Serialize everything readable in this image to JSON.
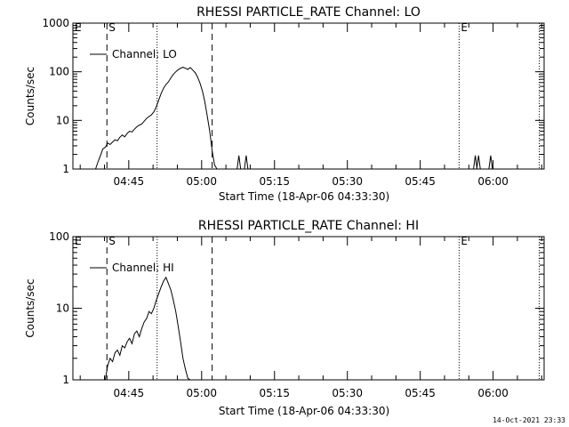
{
  "footer_date": "14-Oct-2021 23:33",
  "chart_data": [
    {
      "type": "line",
      "title": "RHESSI PARTICLE_RATE Channel: LO",
      "xlabel": "Start Time (18-Apr-06 04:33:30)",
      "ylabel": "Counts/sec",
      "y_scale": "log",
      "ylim": [
        1,
        1000
      ],
      "xlim": [
        "04:33:30",
        "06:10:30"
      ],
      "x_ticks": [
        "04:45",
        "05:00",
        "05:15",
        "05:30",
        "05:45",
        "06:00"
      ],
      "y_ticks": [
        "1",
        "10",
        "100",
        "1000"
      ],
      "legend": {
        "label": "Channel: LO",
        "position": "top-left"
      },
      "markers": [
        {
          "label": "E",
          "time": "04:33:30",
          "style": "dotted"
        },
        {
          "label": "S",
          "time": "04:40:30",
          "style": "dashed"
        },
        {
          "label": "",
          "time": "04:50:50",
          "style": "dotted"
        },
        {
          "label": "",
          "time": "05:02:10",
          "style": "dashed"
        },
        {
          "label": "E",
          "time": "05:53:00",
          "style": "dotted"
        },
        {
          "label": "",
          "time": "06:09:30",
          "style": "dotted"
        }
      ],
      "series": [
        {
          "x": [
            "04:38:10",
            "04:38:40",
            "04:39:10",
            "04:39:40",
            "04:40:10",
            "04:40:40",
            "04:41:10",
            "04:41:40",
            "04:42:10",
            "04:42:40",
            "04:43:10",
            "04:43:40",
            "04:44:10",
            "04:44:40",
            "04:45:10",
            "04:45:40",
            "04:46:10",
            "04:46:40",
            "04:47:10",
            "04:47:40",
            "04:48:10",
            "04:48:40",
            "04:49:10",
            "04:49:40",
            "04:50:10",
            "04:50:40",
            "04:51:10",
            "04:51:40",
            "04:52:10",
            "04:52:40",
            "04:53:10",
            "04:53:40",
            "04:54:10",
            "04:54:40",
            "04:55:10",
            "04:55:40",
            "04:56:10",
            "04:56:40",
            "04:57:10",
            "04:57:40",
            "04:58:10",
            "04:58:40",
            "04:59:10",
            "04:59:40",
            "05:00:10",
            "05:00:40",
            "05:01:10",
            "05:01:40",
            "05:02:10",
            "05:02:40",
            "05:03:10"
          ],
          "y": [
            1,
            1.4,
            1.9,
            2.6,
            2.8,
            3.4,
            3.2,
            3.6,
            4,
            3.8,
            4.5,
            5,
            4.6,
            5.4,
            6,
            5.8,
            6.6,
            7.4,
            8,
            8.4,
            9.6,
            11,
            12,
            13,
            15,
            19,
            26,
            36,
            46,
            55,
            62,
            75,
            88,
            100,
            110,
            118,
            124,
            118,
            112,
            122,
            108,
            96,
            78,
            58,
            40,
            24,
            12,
            6,
            2.4,
            1.2,
            1
          ]
        }
      ],
      "spikes": [
        {
          "time": "05:07:40",
          "value": 1.9
        },
        {
          "time": "05:09:10",
          "value": 1.9
        },
        {
          "time": "05:56:20",
          "value": 1.9
        },
        {
          "time": "05:57:00",
          "value": 1.9
        },
        {
          "time": "05:59:30",
          "value": 1.9
        }
      ]
    },
    {
      "type": "line",
      "title": "RHESSI PARTICLE_RATE Channel: HI",
      "xlabel": "Start Time (18-Apr-06 04:33:30)",
      "ylabel": "Counts/sec",
      "y_scale": "log",
      "ylim": [
        1,
        100
      ],
      "xlim": [
        "04:33:30",
        "06:10:30"
      ],
      "x_ticks": [
        "04:45",
        "05:00",
        "05:15",
        "05:30",
        "05:45",
        "06:00"
      ],
      "y_ticks": [
        "1",
        "10",
        "100"
      ],
      "legend": {
        "label": "Channel: HI",
        "position": "top-left"
      },
      "markers": [
        {
          "label": "E",
          "time": "04:33:30",
          "style": "dotted"
        },
        {
          "label": "S",
          "time": "04:40:30",
          "style": "dashed"
        },
        {
          "label": "",
          "time": "04:50:50",
          "style": "dotted"
        },
        {
          "label": "",
          "time": "05:02:10",
          "style": "dashed"
        },
        {
          "label": "E",
          "time": "05:53:00",
          "style": "dotted"
        },
        {
          "label": "",
          "time": "06:09:30",
          "style": "dotted"
        }
      ],
      "series": [
        {
          "x": [
            "04:40:10",
            "04:40:40",
            "04:41:10",
            "04:41:40",
            "04:42:10",
            "04:42:40",
            "04:43:10",
            "04:43:40",
            "04:44:10",
            "04:44:40",
            "04:45:10",
            "04:45:40",
            "04:46:10",
            "04:46:40",
            "04:47:10",
            "04:47:40",
            "04:48:10",
            "04:48:40",
            "04:49:10",
            "04:49:40",
            "04:50:10",
            "04:50:40",
            "04:51:10",
            "04:51:40",
            "04:52:10",
            "04:52:40",
            "04:53:10",
            "04:53:40",
            "04:54:10",
            "04:54:40",
            "04:55:10",
            "04:55:40",
            "04:56:10",
            "04:56:40",
            "04:57:10",
            "04:57:40"
          ],
          "y": [
            1,
            1.6,
            2,
            1.8,
            2.4,
            2.6,
            2.2,
            3,
            2.8,
            3.4,
            3.8,
            3.2,
            4.4,
            4.8,
            4,
            5.2,
            6.4,
            7.2,
            9,
            8.4,
            10,
            13,
            16,
            20,
            24,
            27,
            22,
            18,
            13,
            9,
            5.6,
            3.4,
            2,
            1.4,
            1.05,
            1
          ]
        }
      ],
      "spikes": []
    }
  ]
}
